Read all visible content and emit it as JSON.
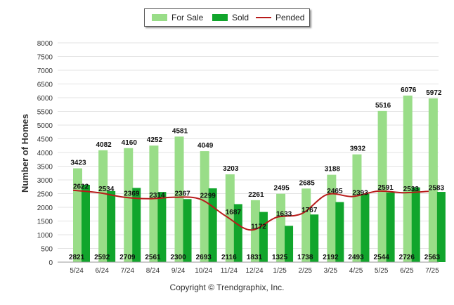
{
  "chart_data": {
    "type": "bar",
    "categories": [
      "5/24",
      "6/24",
      "7/24",
      "8/24",
      "9/24",
      "10/24",
      "11/24",
      "12/24",
      "1/25",
      "2/25",
      "3/25",
      "4/25",
      "5/25",
      "6/25",
      "7/25"
    ],
    "ylabel": "Number of Homes",
    "ylim": [
      0,
      8000
    ],
    "yticks": [
      0,
      500,
      1000,
      1500,
      2000,
      2500,
      3000,
      3500,
      4000,
      4500,
      5000,
      5500,
      6000,
      6500,
      7000,
      7500,
      8000
    ],
    "grid": true,
    "legend_position": "top-center",
    "series": [
      {
        "name": "For Sale",
        "kind": "bar",
        "color": "#99dd88",
        "values": [
          3423,
          4082,
          4160,
          4252,
          4581,
          4049,
          3203,
          2261,
          2495,
          2685,
          3188,
          3932,
          5516,
          6076,
          5972
        ]
      },
      {
        "name": "Sold",
        "kind": "bar",
        "color": "#11a52c",
        "values": [
          2821,
          2592,
          2709,
          2561,
          2300,
          2693,
          2116,
          1831,
          1325,
          1738,
          2192,
          2493,
          2544,
          2726,
          2563
        ]
      },
      {
        "name": "Pended",
        "kind": "line",
        "color": "#b81b1b",
        "values": [
          2622,
          2534,
          2369,
          2314,
          2367,
          2299,
          1687,
          1172,
          1633,
          1767,
          2465,
          2393,
          2591,
          2533,
          2583
        ]
      }
    ]
  },
  "legend": {
    "for_sale": "For Sale",
    "sold": "Sold",
    "pended": "Pended"
  },
  "footer": {
    "copyright": "Copyright © Trendgraphix, Inc."
  }
}
